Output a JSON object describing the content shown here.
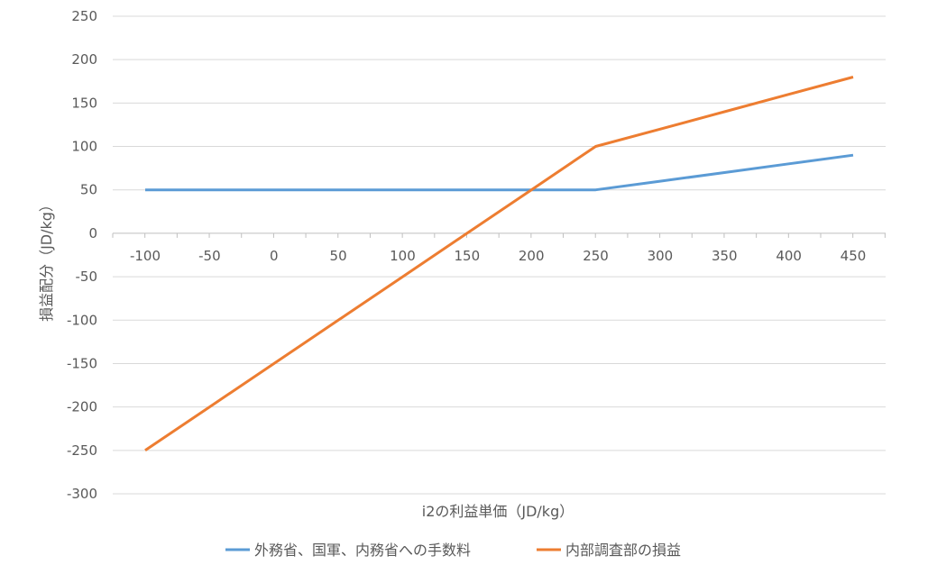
{
  "chart_data": {
    "type": "line",
    "title": "",
    "xlabel": "i2の利益単価（JD/kg）",
    "ylabel": "損益配分（JD/kg）",
    "x": [
      -100,
      -50,
      0,
      50,
      100,
      150,
      200,
      250,
      300,
      350,
      400,
      450
    ],
    "x_ticks": [
      "-100",
      "-50",
      "0",
      "50",
      "100",
      "150",
      "200",
      "250",
      "300",
      "350",
      "400",
      "450"
    ],
    "y_ticks": [
      "250",
      "200",
      "150",
      "100",
      "50",
      "0",
      "-50",
      "-100",
      "-150",
      "-200",
      "-250",
      "-300"
    ],
    "ylim": [
      -300,
      250
    ],
    "grid": true,
    "legend_position": "bottom",
    "series": [
      {
        "name": "外務省、国軍、内務省への手数料",
        "color": "#5b9bd5",
        "values": [
          50,
          50,
          50,
          50,
          50,
          50,
          50,
          50,
          60,
          70,
          80,
          90
        ]
      },
      {
        "name": "内部調査部の損益",
        "color": "#ed7d31",
        "values": [
          -250,
          -200,
          -150,
          -100,
          -50,
          0,
          50,
          100,
          120,
          140,
          160,
          180
        ]
      }
    ]
  }
}
